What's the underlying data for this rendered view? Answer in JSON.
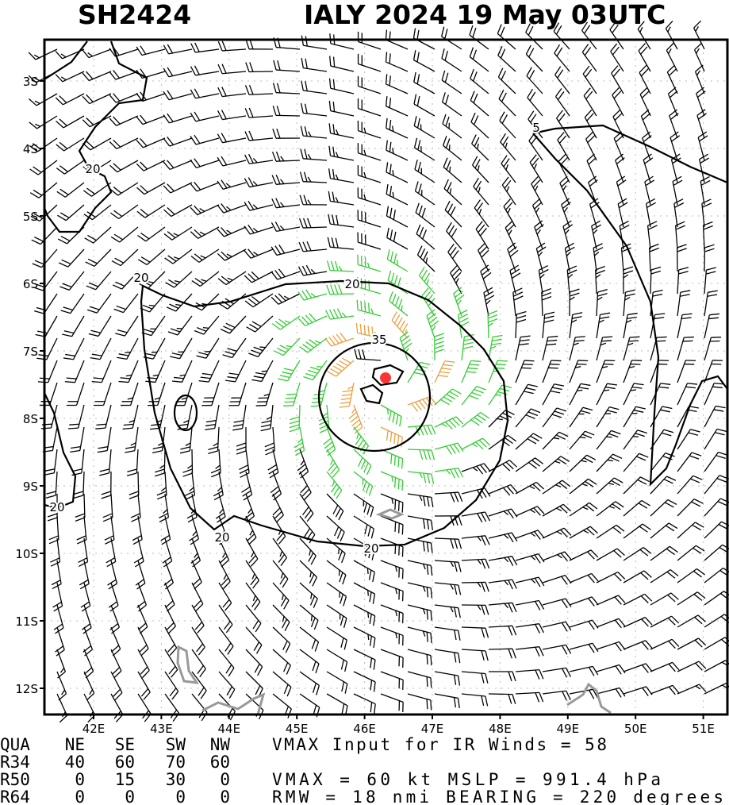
{
  "header": {
    "storm_id": "SH2424",
    "title": "IALY 2024 19 May 03UTC"
  },
  "map": {
    "lat_labels": [
      "3S",
      "4S",
      "5S",
      "6S",
      "7S",
      "8S",
      "9S",
      "10S",
      "11S",
      "12S"
    ],
    "lon_labels": [
      "42E",
      "43E",
      "44E",
      "45E",
      "46E",
      "47E",
      "48E",
      "49E",
      "50E",
      "51E"
    ],
    "contour_labels": [
      "20",
      "20",
      "20",
      "35",
      "5",
      "20",
      "20",
      "20"
    ]
  },
  "table": {
    "header": [
      "QUA",
      "NE",
      "SE",
      "SW",
      "NW"
    ],
    "rows": [
      [
        "R34",
        "40",
        "60",
        "70",
        "60"
      ],
      [
        "R50",
        "0",
        "15",
        "30",
        "0"
      ],
      [
        "R64",
        "0",
        "0",
        "0",
        "0"
      ]
    ]
  },
  "info": [
    "VMAX Input for IR Winds =    58",
    "VMAX =    60 kt MSLP =  991.4 hPa",
    "RMW  =   18 nmi BEARING =  220 degrees"
  ]
}
